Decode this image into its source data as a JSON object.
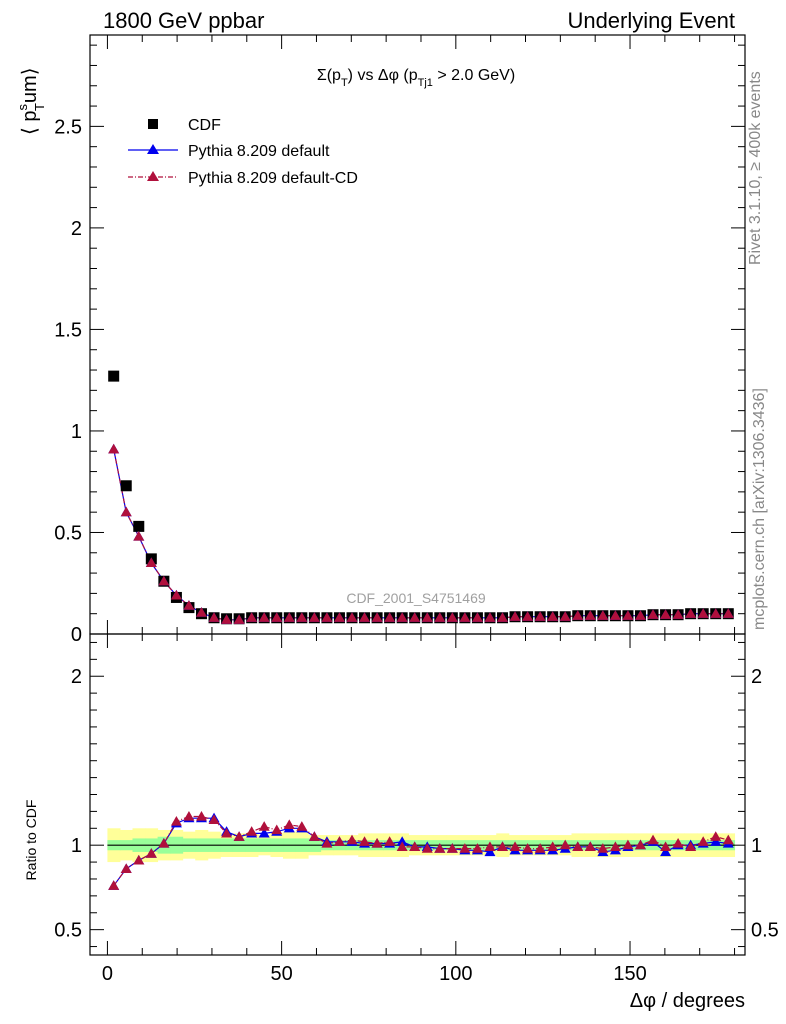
{
  "header": {
    "left": "1800 GeV ppbar",
    "right": "Underlying Event"
  },
  "side_text": {
    "top": "Rivet 3.1.10, ≥ 400k events",
    "bottom": "mcplots.cern.ch [arXiv:1306.3436]"
  },
  "watermark": "CDF_2001_S4751469",
  "colors": {
    "cdf": "#000000",
    "default": "#0000ee",
    "default_cd": "#b0103c",
    "band_outer": "#ffff99",
    "band_inner": "#99ff99"
  },
  "chart_data": [
    {
      "type": "scatter",
      "title": "Σ(p_T) vs Δφ (p_Tj1 > 2.0 GeV)",
      "title_parts": {
        "a": "Σ(p",
        "a_sub": "T",
        "b": ") vs Δφ (p",
        "b_sub": "Tj1",
        "c": " > 2.0 GeV)"
      },
      "ylabel": "⟨ p_T^s um⟩",
      "ylabel_parts": {
        "a": "⟨ p",
        "sup": "s",
        "sub": "T",
        "b": "um⟩"
      },
      "xlim": [
        -5,
        183
      ],
      "ylim": [
        0,
        2.95
      ],
      "y_ticks": [
        "0",
        "0.5",
        "1",
        "1.5",
        "2",
        "2.5"
      ],
      "legend_position": "top-left",
      "x": [
        1.8,
        5.4,
        9.0,
        12.6,
        16.2,
        19.8,
        23.4,
        27.0,
        30.6,
        34.2,
        37.8,
        41.4,
        45.0,
        48.6,
        52.2,
        55.8,
        59.4,
        63.0,
        66.6,
        70.2,
        73.8,
        77.4,
        81.0,
        84.6,
        88.2,
        91.8,
        95.4,
        99.0,
        102.6,
        106.2,
        109.8,
        113.4,
        117.0,
        120.6,
        124.2,
        127.8,
        131.4,
        135.0,
        138.6,
        142.2,
        145.8,
        149.4,
        153.0,
        156.6,
        160.2,
        163.8,
        167.4,
        171.0,
        174.6,
        178.2
      ],
      "series": [
        {
          "name": "CDF",
          "marker": "square",
          "values": [
            1.27,
            0.73,
            0.53,
            0.37,
            0.26,
            0.18,
            0.13,
            0.1,
            0.08,
            0.075,
            0.075,
            0.08,
            0.08,
            0.08,
            0.08,
            0.08,
            0.08,
            0.08,
            0.08,
            0.08,
            0.08,
            0.08,
            0.08,
            0.08,
            0.08,
            0.08,
            0.08,
            0.08,
            0.08,
            0.08,
            0.08,
            0.08,
            0.085,
            0.085,
            0.085,
            0.085,
            0.085,
            0.09,
            0.09,
            0.09,
            0.09,
            0.09,
            0.09,
            0.095,
            0.095,
            0.095,
            0.1,
            0.1,
            0.1,
            0.1
          ]
        },
        {
          "name": "Pythia 8.209 default",
          "marker": "triangle",
          "values": [
            0.91,
            0.6,
            0.48,
            0.35,
            0.26,
            0.19,
            0.14,
            0.105,
            0.08,
            0.07,
            0.07,
            0.08,
            0.08,
            0.08,
            0.08,
            0.08,
            0.08,
            0.08,
            0.08,
            0.08,
            0.08,
            0.08,
            0.08,
            0.08,
            0.08,
            0.08,
            0.08,
            0.08,
            0.08,
            0.08,
            0.08,
            0.08,
            0.085,
            0.085,
            0.085,
            0.085,
            0.085,
            0.09,
            0.09,
            0.09,
            0.09,
            0.09,
            0.09,
            0.095,
            0.095,
            0.095,
            0.1,
            0.1,
            0.1,
            0.1
          ]
        },
        {
          "name": "Pythia 8.209 default-CD",
          "marker": "triangle",
          "values": [
            0.91,
            0.6,
            0.48,
            0.35,
            0.26,
            0.19,
            0.14,
            0.105,
            0.08,
            0.07,
            0.07,
            0.08,
            0.08,
            0.08,
            0.08,
            0.08,
            0.08,
            0.08,
            0.08,
            0.08,
            0.08,
            0.08,
            0.08,
            0.08,
            0.08,
            0.08,
            0.08,
            0.08,
            0.08,
            0.08,
            0.08,
            0.08,
            0.085,
            0.085,
            0.085,
            0.085,
            0.085,
            0.09,
            0.09,
            0.09,
            0.09,
            0.09,
            0.09,
            0.095,
            0.095,
            0.095,
            0.1,
            0.1,
            0.1,
            0.1
          ]
        }
      ]
    },
    {
      "type": "line",
      "ylabel": "Ratio to CDF",
      "xlabel": "Δφ / degrees",
      "xlim": [
        -5,
        183
      ],
      "ylim": [
        0.35,
        2.25
      ],
      "x_ticks": [
        "0",
        "50",
        "100",
        "150"
      ],
      "y_ticks": [
        "0.5",
        "1",
        "2"
      ],
      "band_outer": [
        0.9,
        0.91,
        0.9,
        0.9,
        0.91,
        0.91,
        0.92,
        0.91,
        0.92,
        0.93,
        0.93,
        0.93,
        0.94,
        0.93,
        0.92,
        0.92,
        0.94,
        0.94,
        0.94,
        0.94,
        0.93,
        0.93,
        0.93,
        0.93,
        0.94,
        0.94,
        0.94,
        0.94,
        0.94,
        0.94,
        0.94,
        0.93,
        0.94,
        0.94,
        0.94,
        0.94,
        0.94,
        0.93,
        0.93,
        0.93,
        0.93,
        0.93,
        0.93,
        0.93,
        0.93,
        0.93,
        0.93,
        0.93,
        0.93,
        0.93
      ],
      "band_inner": [
        0.97,
        0.97,
        0.96,
        0.96,
        0.95,
        0.95,
        0.96,
        0.96,
        0.96,
        0.96,
        0.96,
        0.96,
        0.96,
        0.96,
        0.96,
        0.96,
        0.96,
        0.97,
        0.97,
        0.97,
        0.97,
        0.97,
        0.97,
        0.97,
        0.97,
        0.97,
        0.97,
        0.97,
        0.97,
        0.97,
        0.97,
        0.97,
        0.97,
        0.97,
        0.97,
        0.97,
        0.97,
        0.97,
        0.97,
        0.97,
        0.97,
        0.97,
        0.97,
        0.97,
        0.97,
        0.97,
        0.97,
        0.97,
        0.97,
        0.97
      ],
      "series": [
        {
          "name": "Pythia 8.209 default",
          "values": [
            0.76,
            0.86,
            0.91,
            0.95,
            1.01,
            1.13,
            1.16,
            1.16,
            1.16,
            1.08,
            1.05,
            1.07,
            1.07,
            1.08,
            1.1,
            1.1,
            1.05,
            1.02,
            1.02,
            1.02,
            1.01,
            1.01,
            1.01,
            1.02,
            0.99,
            0.99,
            0.98,
            0.98,
            0.97,
            0.97,
            0.96,
            0.99,
            0.97,
            0.97,
            0.97,
            0.97,
            0.98,
            0.99,
            0.99,
            0.96,
            0.97,
            0.99,
            1.0,
            1.02,
            0.96,
            1.0,
            1.0,
            1.01,
            1.02,
            1.01
          ]
        },
        {
          "name": "Pythia 8.209 default-CD",
          "values": [
            0.76,
            0.86,
            0.91,
            0.95,
            1.01,
            1.14,
            1.17,
            1.17,
            1.15,
            1.07,
            1.05,
            1.08,
            1.11,
            1.09,
            1.12,
            1.11,
            1.05,
            1.01,
            1.02,
            1.03,
            1.02,
            1.01,
            1.02,
            0.99,
            0.99,
            0.98,
            0.98,
            0.98,
            0.98,
            0.98,
            0.99,
            0.99,
            0.99,
            0.98,
            0.98,
            0.99,
            1.0,
            0.99,
            0.99,
            0.98,
            0.99,
            1.0,
            1.0,
            1.03,
            0.99,
            1.01,
            0.99,
            1.02,
            1.05,
            1.03
          ]
        }
      ]
    }
  ]
}
